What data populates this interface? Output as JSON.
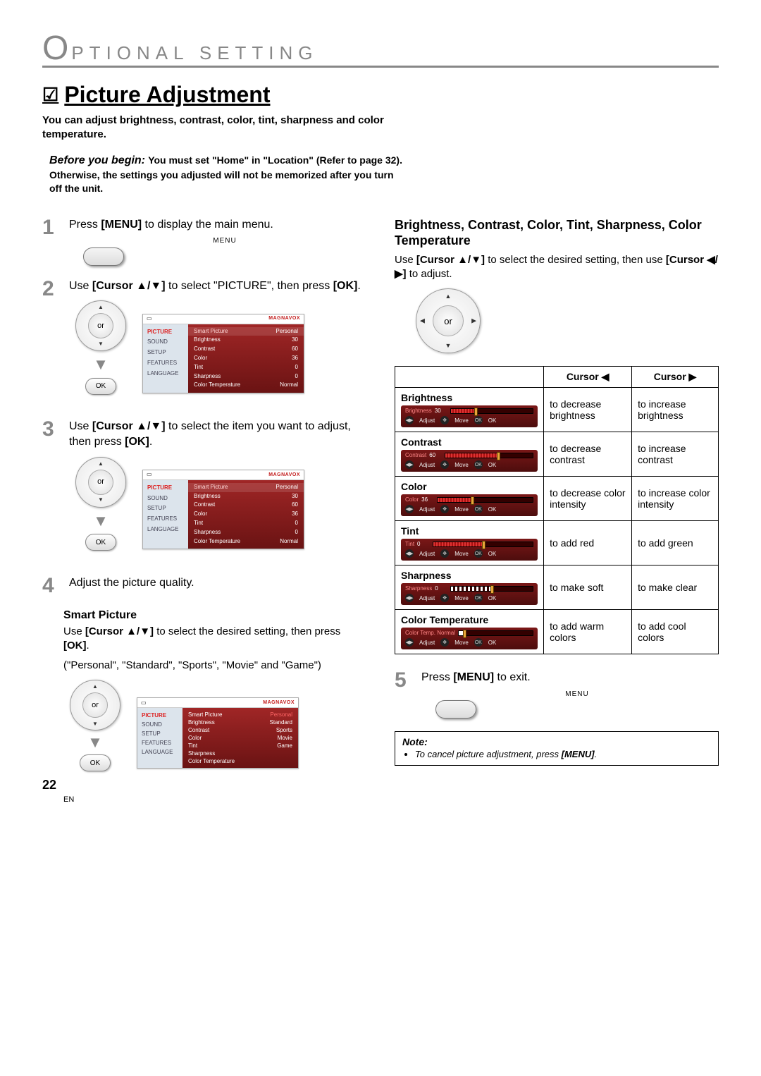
{
  "section_header": {
    "first_letter": "O",
    "rest": "PTIONAL  SETTING"
  },
  "page_title": "Picture Adjustment",
  "check_glyph": "☑",
  "intro": "You can adjust brightness, contrast, color, tint, sharpness and color temperature.",
  "before_begin": {
    "label": "Before you begin:",
    "text": "You must set \"Home\" in \"Location\" (Refer to page 32). Otherwise, the settings you adjusted will not be memorized after you turn off the unit."
  },
  "menu_label": "MENU",
  "or_label": "or",
  "ok_label": "OK",
  "osd_brand": "MAGNAVOX",
  "osd_sidebar": [
    "PICTURE",
    "SOUND",
    "SETUP",
    "FEATURES",
    "LANGUAGE"
  ],
  "osd_items": [
    {
      "k": "Smart Picture",
      "v": "Personal"
    },
    {
      "k": "Brightness",
      "v": "30"
    },
    {
      "k": "Contrast",
      "v": "60"
    },
    {
      "k": "Color",
      "v": "36"
    },
    {
      "k": "Tint",
      "v": "0"
    },
    {
      "k": "Sharpness",
      "v": "0"
    },
    {
      "k": "Color Temperature",
      "v": "Normal"
    }
  ],
  "osd_smart_values": [
    "Personal",
    "Standard",
    "Sports",
    "Movie",
    "Game"
  ],
  "steps": {
    "s1": "Press [MENU] to display the main menu.",
    "s2": "Use [Cursor ▲/▼] to select \"PICTURE\", then press [OK].",
    "s3": "Use [Cursor ▲/▼] to select the item you want to adjust, then press [OK].",
    "s4": "Adjust the picture quality.",
    "s5": "Press [MENU] to exit."
  },
  "smart_picture": {
    "title": "Smart Picture",
    "text": "Use [Cursor ▲/▼] to select the desired setting, then press [OK].",
    "list": "(\"Personal\", \"Standard\", \"Sports\", \"Movie\" and \"Game\")"
  },
  "right": {
    "heading": "Brightness, Contrast, Color, Tint, Sharpness, Color Temperature",
    "text": "Use [Cursor ▲/▼] to select the desired setting, then use [Cursor ◀/▶] to adjust."
  },
  "table": {
    "head_left": "Cursor ◀",
    "head_right": "Cursor ▶",
    "rows": [
      {
        "name": "Brightness",
        "val": "30",
        "fill": 30,
        "left": "to decrease brightness",
        "right": "to increase brightness",
        "style": "bar"
      },
      {
        "name": "Contrast",
        "val": "60",
        "fill": 60,
        "left": "to decrease contrast",
        "right": "to increase contrast",
        "style": "bar"
      },
      {
        "name": "Color",
        "val": "36",
        "fill": 36,
        "left": "to decrease color intensity",
        "right": "to increase color intensity",
        "style": "bar"
      },
      {
        "name": "Tint",
        "val": "0",
        "fill": 50,
        "left": "to add red",
        "right": "to add green",
        "style": "bar"
      },
      {
        "name": "Sharpness",
        "val": "0",
        "fill": 50,
        "left": "to make soft",
        "right": "to make clear",
        "style": "seg"
      },
      {
        "name": "Color Temperature",
        "val": "",
        "fill": 8,
        "left": "to add warm colors",
        "right": "to add cool colors",
        "style": "temp",
        "display": "Color Temp. Normal"
      }
    ],
    "adjust_label": "Adjust",
    "move_label": "Move",
    "ok_label": "OK"
  },
  "note": {
    "title": "Note:",
    "item": "To cancel picture adjustment, press [MENU]."
  },
  "page_number": "22",
  "page_lang": "EN"
}
